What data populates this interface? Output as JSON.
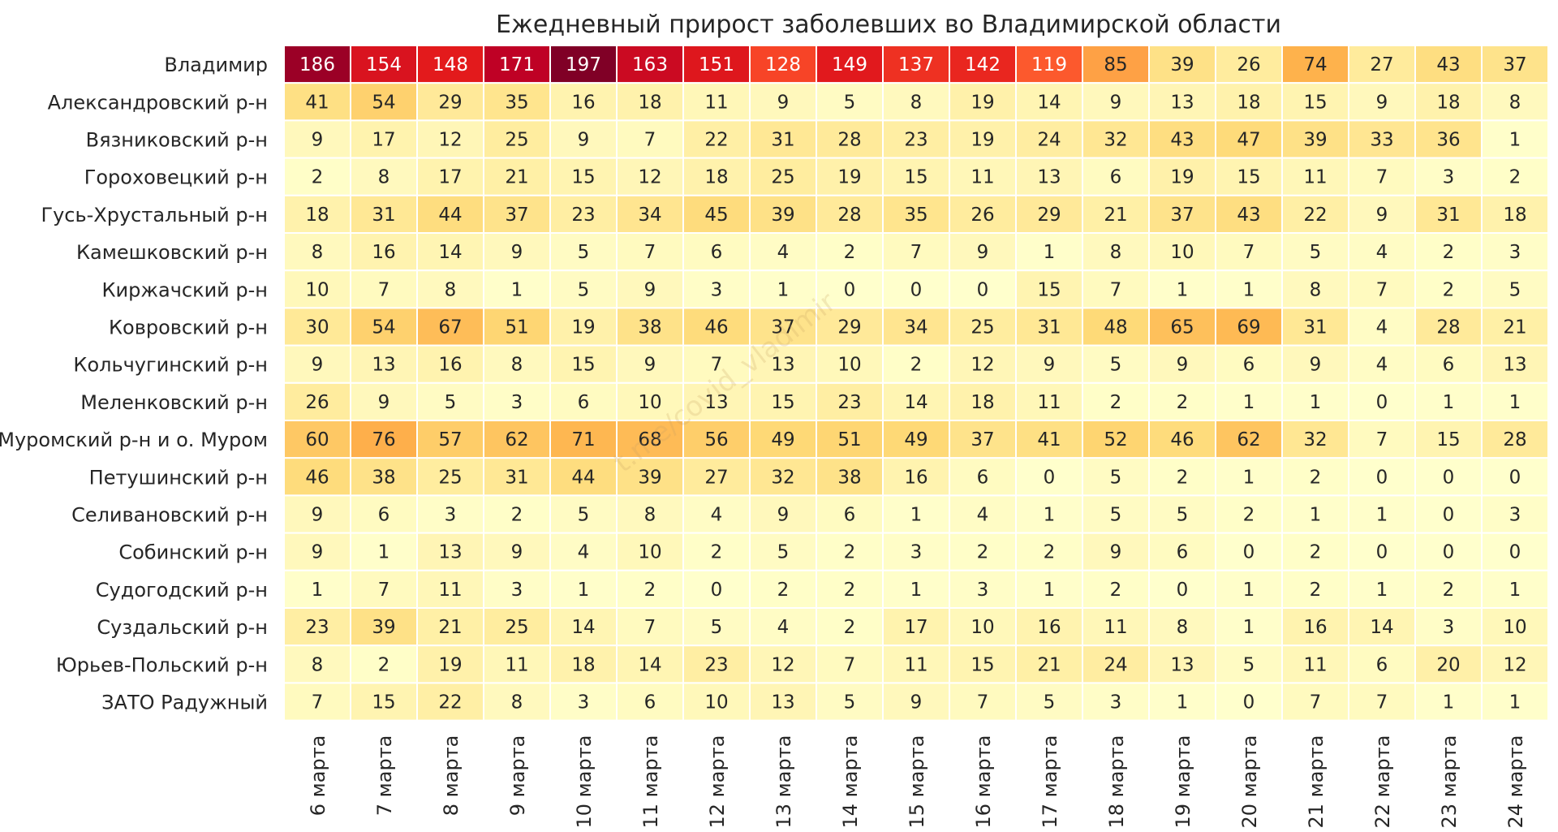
{
  "chart_data": {
    "type": "heatmap",
    "title": "Ежедневный прирост заболевших во Владимирской области",
    "watermark": "t.me/covid_vladimir",
    "xlabel": "",
    "ylabel": "",
    "color_range": [
      0,
      197
    ],
    "colormap": "YlOrRd",
    "x": [
      "6 марта",
      "7 марта",
      "8 марта",
      "9 марта",
      "10 марта",
      "11 марта",
      "12 марта",
      "13 марта",
      "14 марта",
      "15 марта",
      "16 марта",
      "17 марта",
      "18 марта",
      "19 марта",
      "20 марта",
      "21 марта",
      "22 марта",
      "23 марта",
      "24 марта"
    ],
    "y": [
      "Владимир",
      "Александровский р-н",
      "Вязниковский р-н",
      "Гороховецкий р-н",
      "Гусь-Хрустальный р-н",
      "Камешковский р-н",
      "Киржачский р-н",
      "Ковровский р-н",
      "Кольчугинский р-н",
      "Меленковский р-н",
      "Муромский р-н и о. Муром",
      "Петушинский р-н",
      "Селивановский р-н",
      "Собинский р-н",
      "Судогодский р-н",
      "Суздальский р-н",
      "Юрьев-Польский р-н",
      "ЗАТО Радужный"
    ],
    "values": [
      [
        186,
        154,
        148,
        171,
        197,
        163,
        151,
        128,
        149,
        137,
        142,
        119,
        85,
        39,
        26,
        74,
        27,
        43,
        37
      ],
      [
        41,
        54,
        29,
        35,
        16,
        18,
        11,
        9,
        5,
        8,
        19,
        14,
        9,
        13,
        18,
        15,
        9,
        18,
        8
      ],
      [
        9,
        17,
        12,
        25,
        9,
        7,
        22,
        31,
        28,
        23,
        19,
        24,
        32,
        43,
        47,
        39,
        33,
        36,
        1
      ],
      [
        2,
        8,
        17,
        21,
        15,
        12,
        18,
        25,
        19,
        15,
        11,
        13,
        6,
        19,
        15,
        11,
        7,
        3,
        2
      ],
      [
        18,
        31,
        44,
        37,
        23,
        34,
        45,
        39,
        28,
        35,
        26,
        29,
        21,
        37,
        43,
        22,
        9,
        31,
        18
      ],
      [
        8,
        16,
        14,
        9,
        5,
        7,
        6,
        4,
        2,
        7,
        9,
        1,
        8,
        10,
        7,
        5,
        4,
        2,
        3
      ],
      [
        10,
        7,
        8,
        1,
        5,
        9,
        3,
        1,
        0,
        0,
        0,
        15,
        7,
        1,
        1,
        8,
        7,
        2,
        5
      ],
      [
        30,
        54,
        67,
        51,
        19,
        38,
        46,
        37,
        29,
        34,
        25,
        31,
        48,
        65,
        69,
        31,
        4,
        28,
        21
      ],
      [
        9,
        13,
        16,
        8,
        15,
        9,
        7,
        13,
        10,
        2,
        12,
        9,
        5,
        9,
        6,
        9,
        4,
        6,
        13
      ],
      [
        26,
        9,
        5,
        3,
        6,
        10,
        13,
        15,
        23,
        14,
        18,
        11,
        2,
        2,
        1,
        1,
        0,
        1,
        1
      ],
      [
        60,
        76,
        57,
        62,
        71,
        68,
        56,
        49,
        51,
        49,
        37,
        41,
        52,
        46,
        62,
        32,
        7,
        15,
        28
      ],
      [
        46,
        38,
        25,
        31,
        44,
        39,
        27,
        32,
        38,
        16,
        6,
        0,
        5,
        2,
        1,
        2,
        0,
        0,
        0
      ],
      [
        9,
        6,
        3,
        2,
        5,
        8,
        4,
        9,
        6,
        1,
        4,
        1,
        5,
        5,
        2,
        1,
        1,
        0,
        3
      ],
      [
        9,
        1,
        13,
        9,
        4,
        10,
        2,
        5,
        2,
        3,
        2,
        2,
        9,
        6,
        0,
        2,
        0,
        0,
        0
      ],
      [
        1,
        7,
        11,
        3,
        1,
        2,
        0,
        2,
        2,
        1,
        3,
        1,
        2,
        0,
        1,
        2,
        1,
        2,
        1
      ],
      [
        23,
        39,
        21,
        25,
        14,
        7,
        5,
        4,
        2,
        17,
        10,
        16,
        11,
        8,
        1,
        16,
        14,
        3,
        10
      ],
      [
        8,
        2,
        19,
        11,
        18,
        14,
        23,
        12,
        7,
        11,
        15,
        21,
        24,
        13,
        5,
        11,
        6,
        20,
        12
      ],
      [
        7,
        15,
        22,
        8,
        3,
        6,
        10,
        13,
        5,
        9,
        7,
        5,
        3,
        1,
        0,
        7,
        7,
        1,
        1
      ]
    ]
  }
}
